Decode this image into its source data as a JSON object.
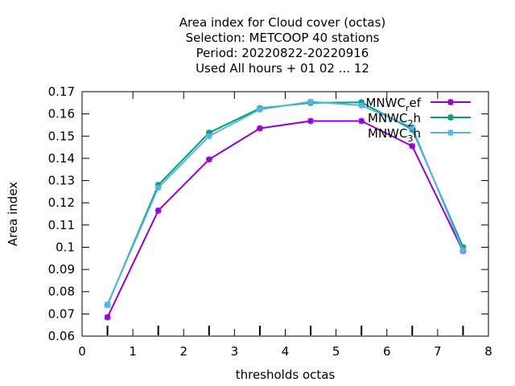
{
  "chart_data": {
    "type": "line",
    "title_lines": [
      "Area index  for Cloud cover (octas)",
      "Selection: METCOOP     40 stations",
      "Period: 20220822-20220916",
      "Used  All hours + 01 02 ... 12"
    ],
    "xlabel": "thresholds octas",
    "ylabel": "Area index",
    "xlim": [
      0,
      8
    ],
    "ylim": [
      0.06,
      0.17
    ],
    "x_ticks": [
      "0",
      "1",
      "2",
      "3",
      "4",
      "5",
      "6",
      "7",
      "8"
    ],
    "y_ticks": [
      "0.06",
      "0.07",
      "0.08",
      "0.09",
      "0.1",
      "0.11",
      "0.12",
      "0.13",
      "0.14",
      "0.15",
      "0.16",
      "0.17"
    ],
    "x": [
      0.5,
      1.5,
      2.5,
      3.5,
      4.5,
      5.5,
      6.5,
      7.5
    ],
    "series": [
      {
        "name": "MNWC",
        "subscript": "r",
        "suffix": "ef",
        "color": "#9400d3",
        "values": [
          0.0685,
          0.1165,
          0.1395,
          0.1535,
          0.1568,
          0.1568,
          0.1455,
          0.0983
        ]
      },
      {
        "name": "MNWC",
        "subscript": "2",
        "suffix": "h",
        "color": "#009e73",
        "values": [
          0.074,
          0.128,
          0.1515,
          0.1625,
          0.165,
          0.1652,
          0.153,
          0.1
        ]
      },
      {
        "name": "MNWC",
        "subscript": "3",
        "suffix": "h",
        "color": "#56b4e9",
        "values": [
          0.0742,
          0.1268,
          0.15,
          0.162,
          0.1655,
          0.1638,
          0.154,
          0.0985
        ]
      }
    ],
    "legend_position": "top-right",
    "grid": false
  }
}
